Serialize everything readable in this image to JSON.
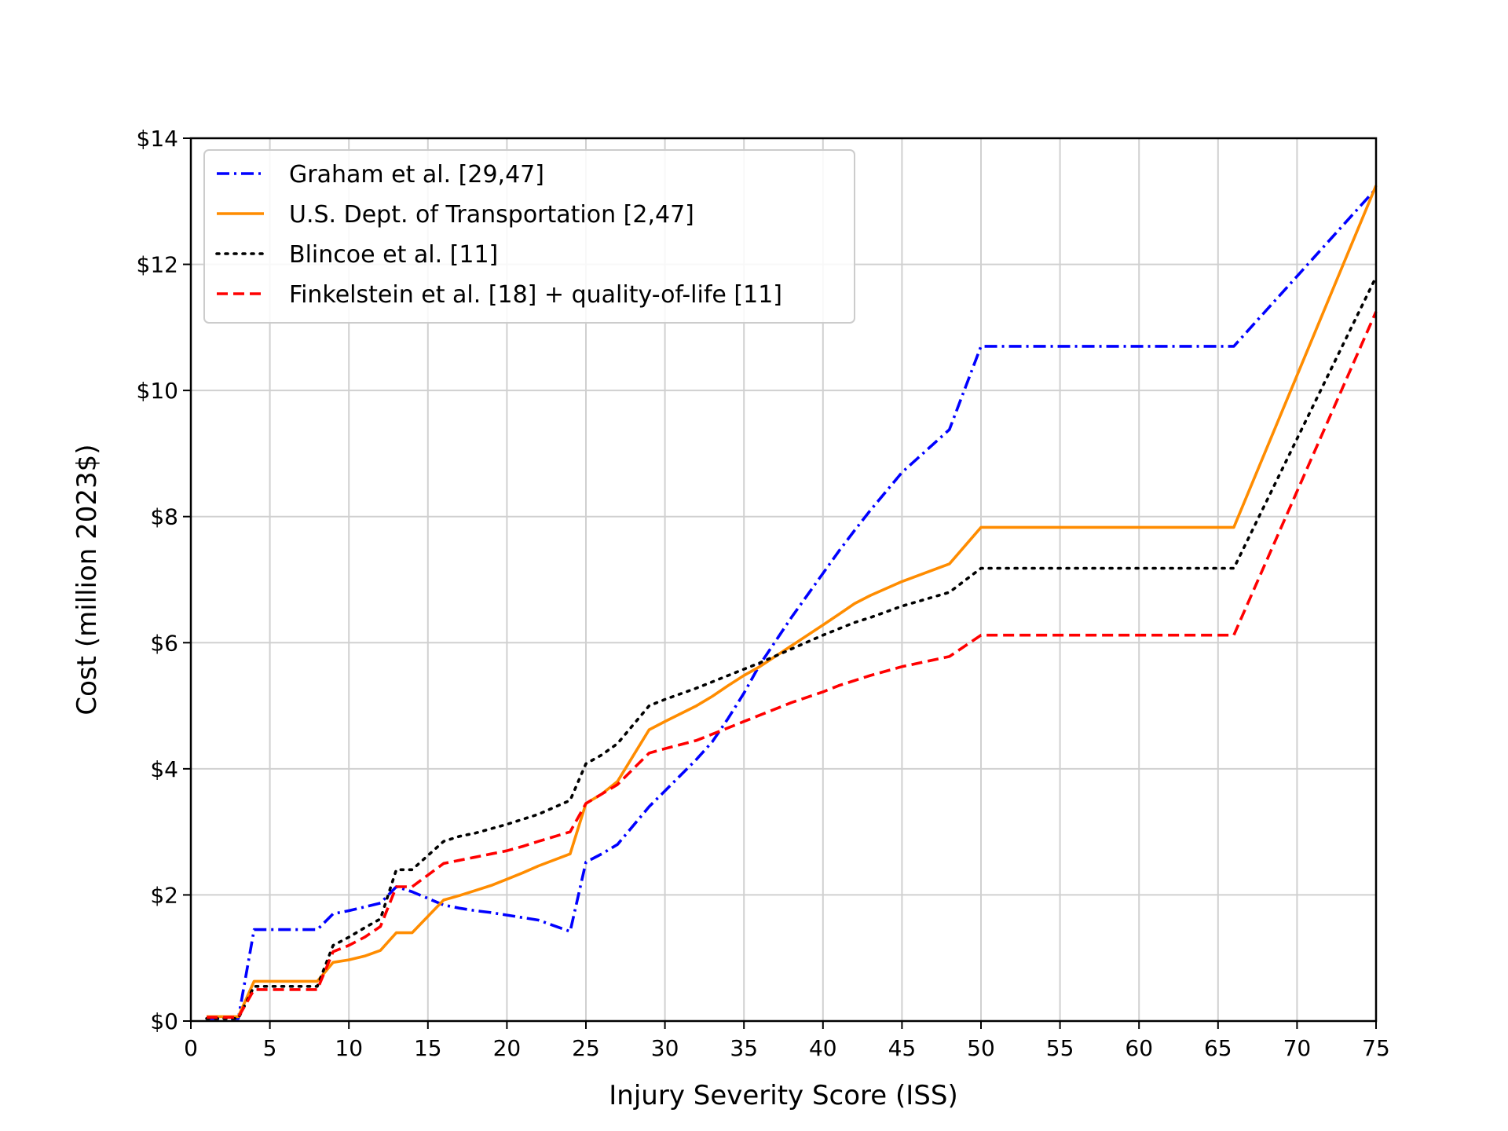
{
  "chart_data": {
    "type": "line",
    "title": "",
    "xlabel": "Injury Severity Score (ISS)",
    "ylabel": "Cost (million 2023$)",
    "xlim": [
      0,
      75
    ],
    "ylim": [
      0,
      14
    ],
    "xticks": [
      0,
      5,
      10,
      15,
      20,
      25,
      30,
      35,
      40,
      45,
      50,
      55,
      60,
      65,
      70,
      75
    ],
    "xtick_labels": [
      "0",
      "5",
      "10",
      "15",
      "20",
      "25",
      "30",
      "35",
      "40",
      "45",
      "50",
      "55",
      "60",
      "65",
      "70",
      "75"
    ],
    "yticks": [
      0,
      2,
      4,
      6,
      8,
      10,
      12,
      14
    ],
    "ytick_labels": [
      "$0",
      "$2",
      "$4",
      "$6",
      "$8",
      "$10",
      "$12",
      "$14"
    ],
    "grid": true,
    "legend_position": "top-left",
    "series": [
      {
        "name": "Graham et al. [29,47]",
        "color": "#0000ff",
        "style": "dash-dot",
        "x": [
          1,
          2,
          3,
          4,
          5,
          6,
          8,
          9,
          10,
          12,
          13,
          14,
          16,
          17,
          18,
          19,
          20,
          21,
          22,
          24,
          25,
          26,
          27,
          29,
          30,
          32,
          33,
          34,
          35,
          36,
          38,
          40,
          41,
          42,
          43,
          45,
          48,
          50,
          66,
          75
        ],
        "y": [
          0.04,
          0.04,
          0.04,
          1.45,
          1.45,
          1.45,
          1.45,
          1.7,
          1.75,
          1.87,
          2.13,
          2.05,
          1.84,
          1.79,
          1.75,
          1.72,
          1.68,
          1.64,
          1.6,
          1.42,
          2.52,
          2.65,
          2.8,
          3.4,
          3.65,
          4.15,
          4.43,
          4.8,
          5.2,
          5.65,
          6.4,
          7.1,
          7.45,
          7.78,
          8.1,
          8.7,
          9.38,
          10.7,
          10.7,
          13.2
        ]
      },
      {
        "name": "U.S. Dept. of Transportation [2,47]",
        "color": "#ff8c00",
        "style": "solid",
        "x": [
          1,
          2,
          3,
          4,
          5,
          6,
          8,
          9,
          10,
          11,
          12,
          13,
          14,
          16,
          17,
          18,
          19,
          20,
          21,
          22,
          24,
          25,
          26,
          27,
          29,
          30,
          32,
          33,
          34,
          35,
          36,
          38,
          40,
          41,
          42,
          43,
          45,
          48,
          50,
          66,
          75
        ],
        "y": [
          0.07,
          0.07,
          0.07,
          0.63,
          0.63,
          0.63,
          0.63,
          0.93,
          0.97,
          1.03,
          1.12,
          1.4,
          1.4,
          1.92,
          1.99,
          2.07,
          2.15,
          2.25,
          2.35,
          2.46,
          2.65,
          3.45,
          3.6,
          3.8,
          4.62,
          4.75,
          5.0,
          5.15,
          5.32,
          5.48,
          5.62,
          5.95,
          6.28,
          6.45,
          6.62,
          6.75,
          6.97,
          7.25,
          7.83,
          7.83,
          13.25
        ]
      },
      {
        "name": "Blincoe et al. [11]",
        "color": "#000000",
        "style": "dotted",
        "x": [
          1,
          2,
          3,
          4,
          5,
          6,
          8,
          9,
          10,
          11,
          12,
          13,
          14,
          16,
          17,
          18,
          19,
          20,
          21,
          22,
          24,
          25,
          26,
          27,
          29,
          30,
          32,
          33,
          34,
          35,
          36,
          38,
          40,
          41,
          42,
          43,
          45,
          48,
          50,
          66,
          75
        ],
        "y": [
          0.04,
          0.04,
          0.04,
          0.55,
          0.55,
          0.55,
          0.55,
          1.2,
          1.33,
          1.48,
          1.62,
          2.4,
          2.4,
          2.85,
          2.93,
          2.98,
          3.05,
          3.12,
          3.2,
          3.28,
          3.5,
          4.08,
          4.22,
          4.4,
          5.0,
          5.1,
          5.28,
          5.38,
          5.48,
          5.58,
          5.68,
          5.9,
          6.12,
          6.22,
          6.32,
          6.4,
          6.58,
          6.8,
          7.18,
          7.18,
          11.8
        ]
      },
      {
        "name": "Finkelstein et al. [18] + quality-of-life [11]",
        "color": "#ff0000",
        "style": "dashed",
        "x": [
          1,
          2,
          3,
          4,
          5,
          6,
          8,
          9,
          10,
          11,
          12,
          13,
          14,
          16,
          17,
          18,
          19,
          20,
          21,
          22,
          24,
          25,
          26,
          27,
          29,
          30,
          32,
          33,
          34,
          35,
          36,
          38,
          40,
          41,
          42,
          43,
          45,
          48,
          50,
          66,
          75
        ],
        "y": [
          0.06,
          0.06,
          0.06,
          0.5,
          0.5,
          0.5,
          0.5,
          1.1,
          1.2,
          1.33,
          1.5,
          2.13,
          2.13,
          2.5,
          2.55,
          2.6,
          2.65,
          2.7,
          2.77,
          2.85,
          3.0,
          3.45,
          3.6,
          3.75,
          4.25,
          4.32,
          4.45,
          4.55,
          4.65,
          4.75,
          4.85,
          5.05,
          5.22,
          5.32,
          5.4,
          5.48,
          5.62,
          5.78,
          6.12,
          6.12,
          11.25
        ]
      }
    ]
  }
}
